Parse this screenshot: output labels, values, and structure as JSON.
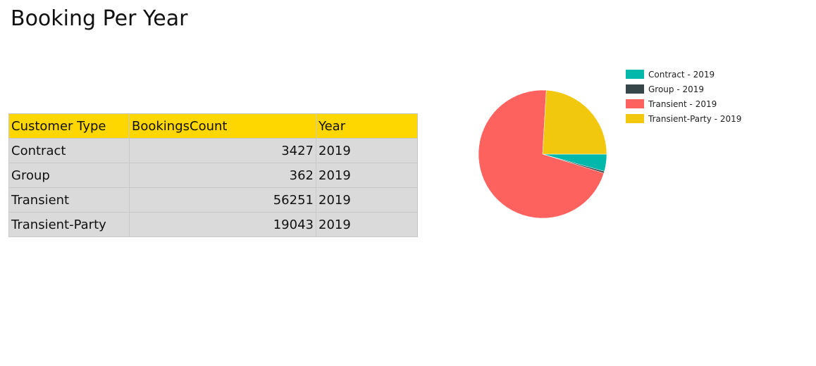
{
  "page": {
    "title": "Booking Per Year"
  },
  "table": {
    "columns": [
      "Customer Type",
      "BookingsCount",
      "Year"
    ],
    "rows": [
      [
        "Contract",
        "3427",
        "2019"
      ],
      [
        "Group",
        "362",
        "2019"
      ],
      [
        "Transient",
        "56251",
        "2019"
      ],
      [
        "Transient-Party",
        "19043",
        "2019"
      ]
    ]
  },
  "chart_data": {
    "type": "pie",
    "title": "",
    "categories": [
      "Contract - 2019",
      "Group - 2019",
      "Transient - 2019",
      "Transient-Party - 2019"
    ],
    "values": [
      3427,
      362,
      56251,
      19043
    ],
    "colors": [
      "#01b8aa",
      "#374649",
      "#fd625e",
      "#f2c80f"
    ],
    "legend": "top-right"
  }
}
